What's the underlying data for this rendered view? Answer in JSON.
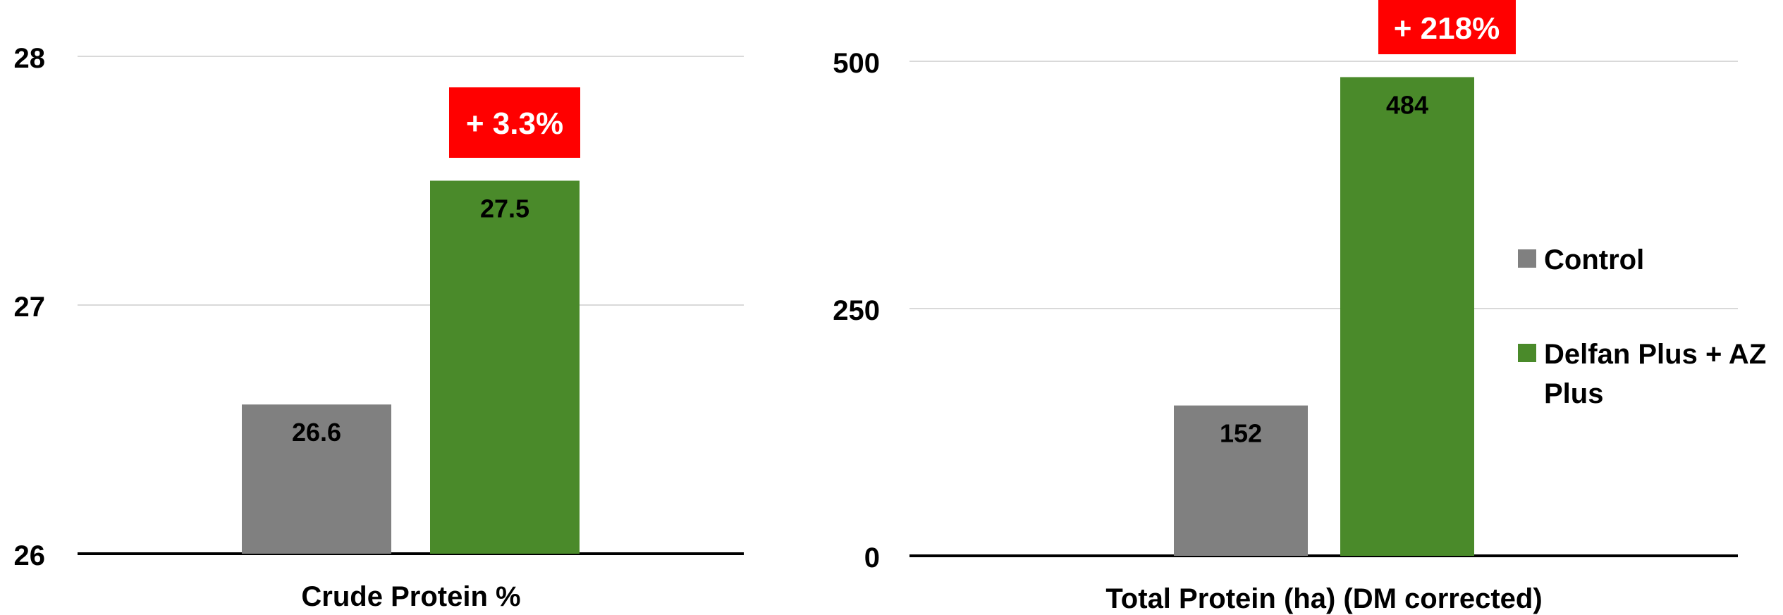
{
  "colors": {
    "control": "#808080",
    "treatment": "#4a8a2a",
    "badge": "#ff0000",
    "gridline": "#d9d9d9",
    "axis": "#000000"
  },
  "legend": {
    "position": "right",
    "items": [
      {
        "label": "Control",
        "color": "#808080"
      },
      {
        "label": "Delfan Plus + AZ Plus",
        "color": "#4a8a2a"
      }
    ]
  },
  "chart_data": [
    {
      "type": "bar",
      "title": "",
      "xlabel": "Crude Protein %",
      "ylabel": "",
      "ylim": [
        26,
        28
      ],
      "yticks": [
        "26",
        "27",
        "28"
      ],
      "grid": true,
      "series": [
        {
          "name": "Control",
          "values": [
            26.6
          ]
        },
        {
          "name": "Delfan Plus + AZ Plus",
          "values": [
            27.5
          ]
        }
      ],
      "data_labels": [
        "26.6",
        "27.5"
      ],
      "annotation": "+ 3.3%"
    },
    {
      "type": "bar",
      "title": "",
      "xlabel": "Total Protein (ha) (DM corrected)",
      "ylabel": "",
      "ylim": [
        0,
        500
      ],
      "yticks": [
        "0",
        "250",
        "500"
      ],
      "grid": true,
      "series": [
        {
          "name": "Control",
          "values": [
            152
          ]
        },
        {
          "name": "Delfan Plus + AZ Plus",
          "values": [
            484
          ]
        }
      ],
      "data_labels": [
        "152",
        "484"
      ],
      "annotation": "+ 218%"
    }
  ]
}
